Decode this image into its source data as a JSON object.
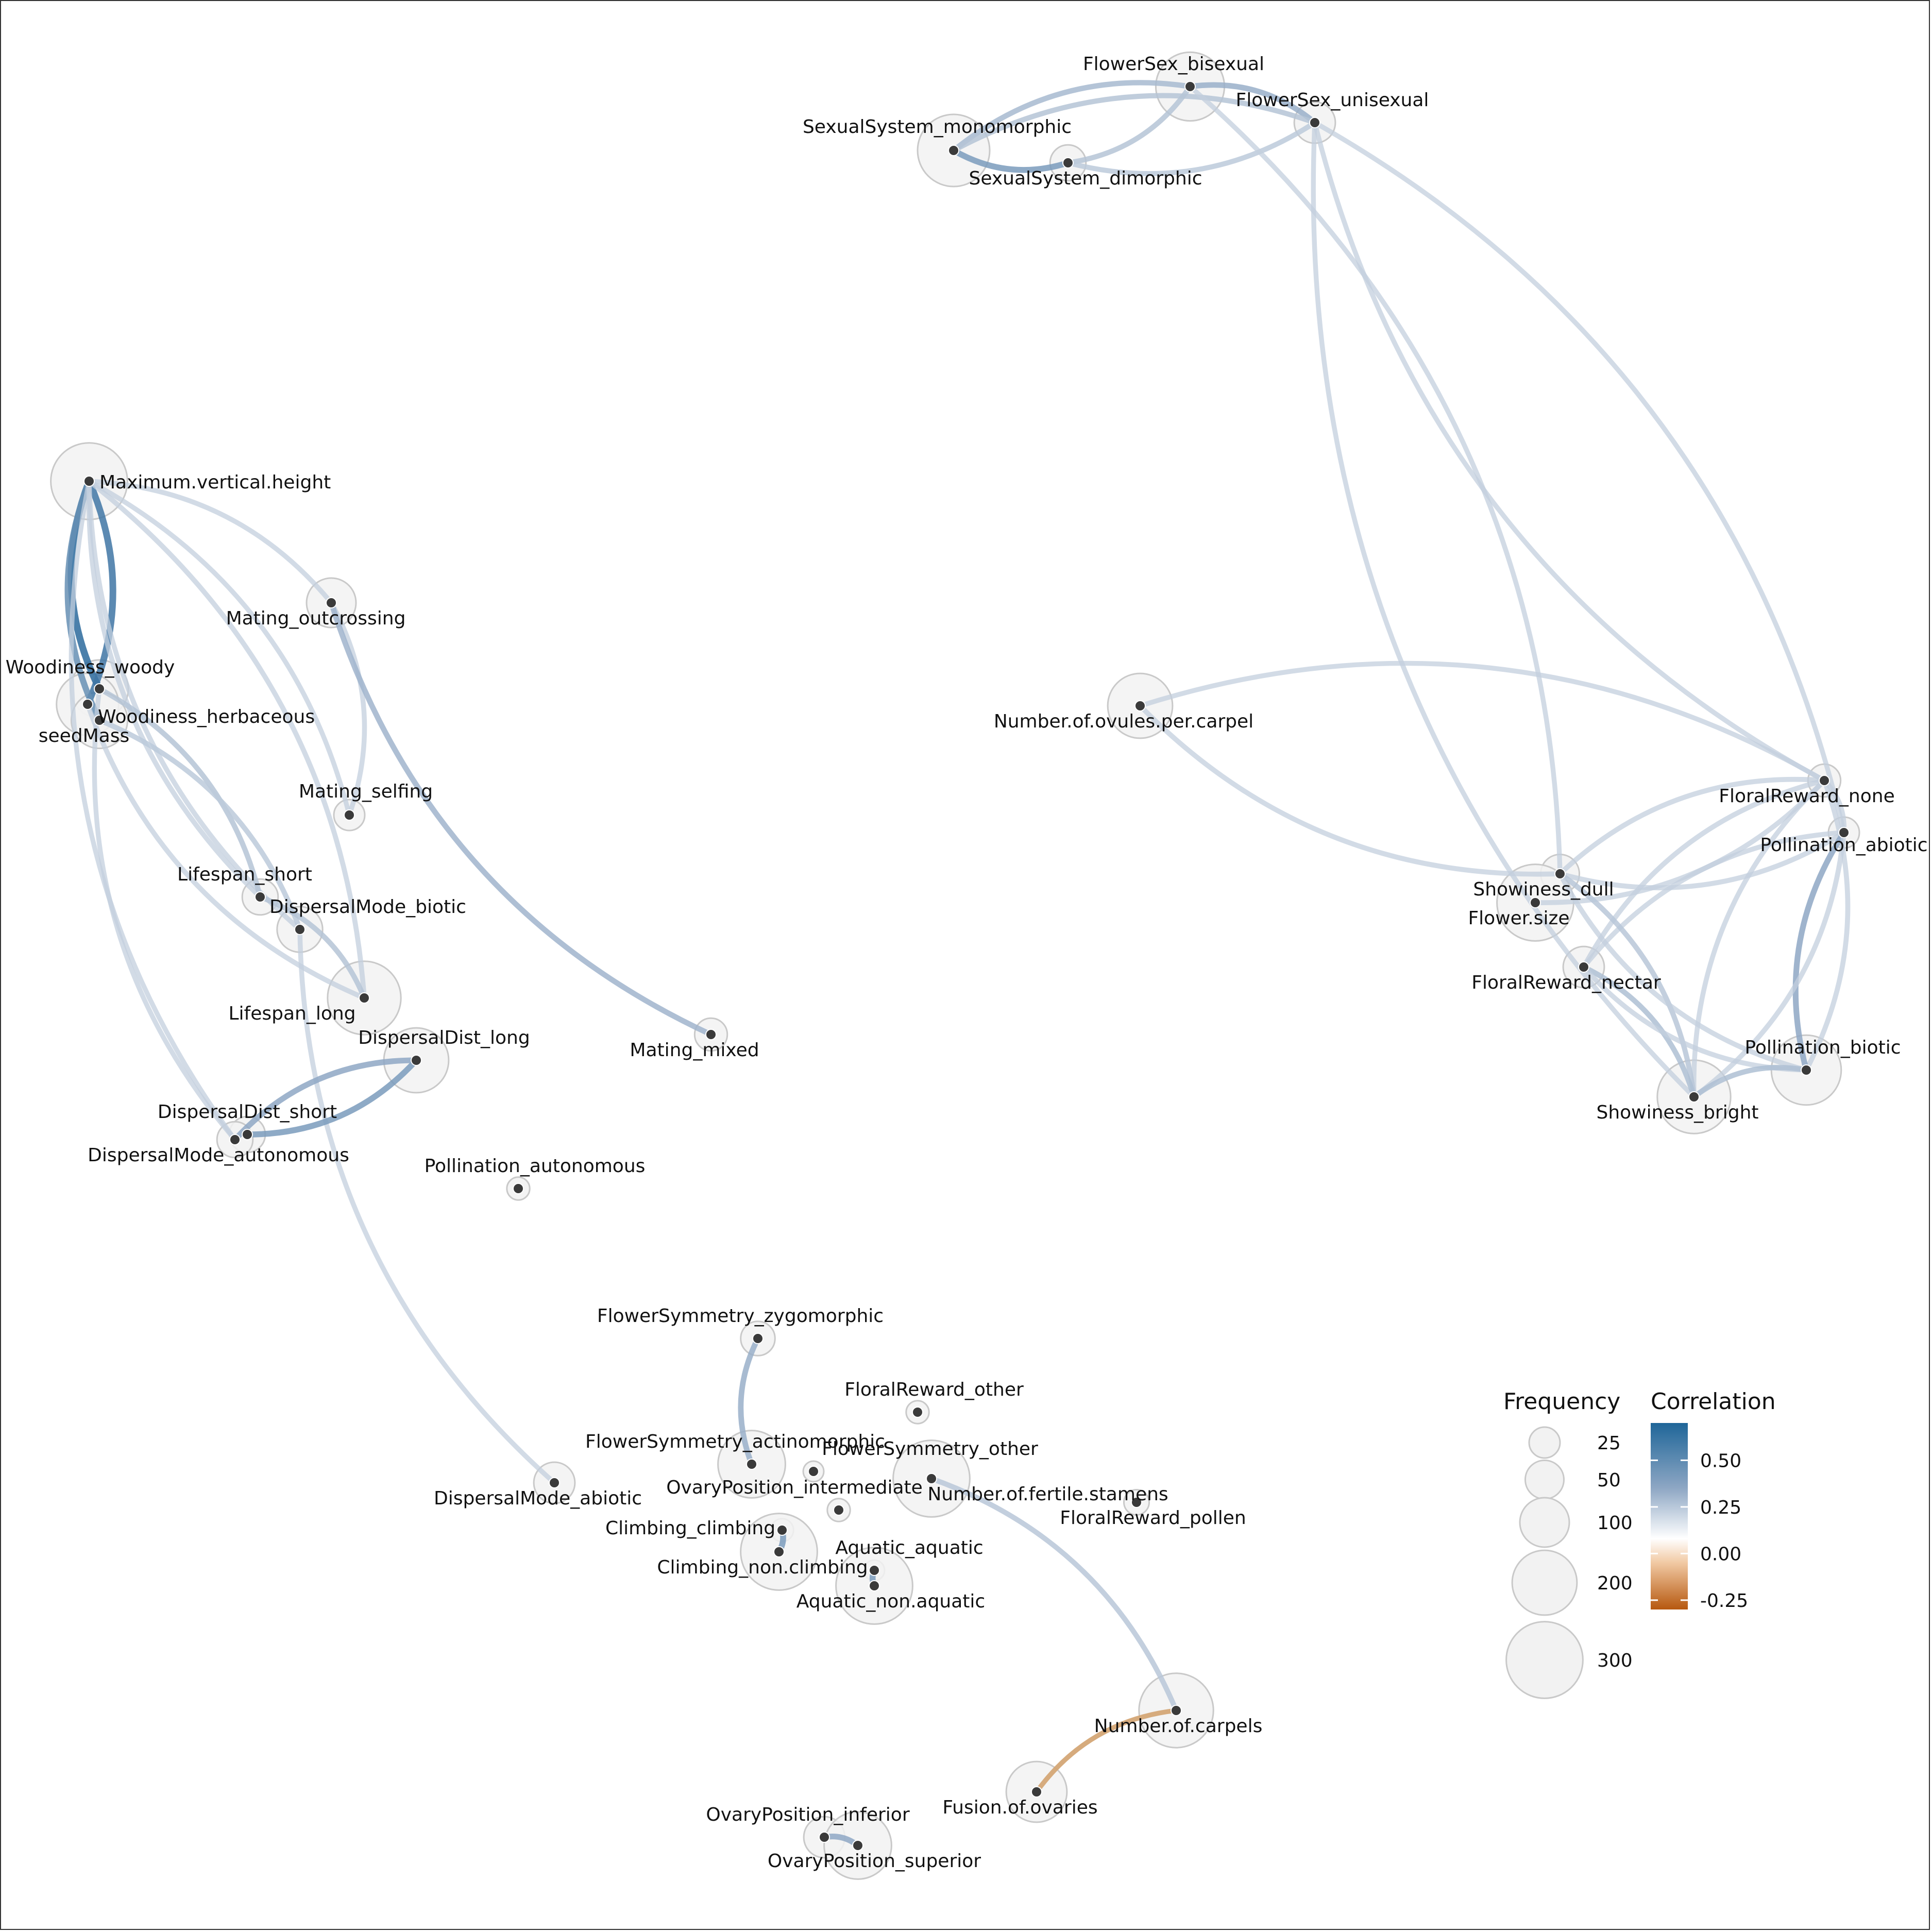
{
  "colors": {
    "edge_weak": "#c3cfdd",
    "edge_mid": "#8ea7c4",
    "edge_strong": "#2b6a9c",
    "edge_negative": "#d4a676",
    "node_dot": "#3a3a3a",
    "bubble_fill": "#f2f2f2",
    "bubble_stroke": "#c9c9c9",
    "label": "#111111",
    "gradient": [
      "#1f6699",
      "#8ea7c4",
      "#ffffff",
      "#f1c9a3",
      "#b6580f"
    ]
  },
  "nodes": [
    {
      "id": "Maximum.vertical.height",
      "freq": 300
    },
    {
      "id": "Mating_outcrossing",
      "freq": 100
    },
    {
      "id": "Woodiness_woody",
      "freq": 150
    },
    {
      "id": "Woodiness_herbaceous",
      "freq": 180
    },
    {
      "id": "seedMass",
      "freq": 140
    },
    {
      "id": "Mating_selfing",
      "freq": 25
    },
    {
      "id": "Lifespan_short",
      "freq": 40
    },
    {
      "id": "DispersalMode_biotic",
      "freq": 80
    },
    {
      "id": "Lifespan_long",
      "freq": 270
    },
    {
      "id": "DispersalDist_long",
      "freq": 200
    },
    {
      "id": "Mating_mixed",
      "freq": 30
    },
    {
      "id": "DispersalDist_short",
      "freq": 40
    },
    {
      "id": "DispersalMode_autonomous",
      "freq": 40
    },
    {
      "id": "Pollination_autonomous",
      "freq": 8
    },
    {
      "id": "FlowerSex_bisexual",
      "freq": 230
    },
    {
      "id": "FlowerSex_unisexual",
      "freq": 60
    },
    {
      "id": "SexualSystem_monomorphic",
      "freq": 260
    },
    {
      "id": "SexualSystem_dimorphic",
      "freq": 40
    },
    {
      "id": "Number.of.ovules.per.carpel",
      "freq": 200
    },
    {
      "id": "FloralReward_none",
      "freq": 30
    },
    {
      "id": "Pollination_abiotic",
      "freq": 25
    },
    {
      "id": "Showiness_dull",
      "freq": 50
    },
    {
      "id": "Flower.size",
      "freq": 300
    },
    {
      "id": "FloralReward_nectar",
      "freq": 60
    },
    {
      "id": "Pollination_biotic",
      "freq": 240
    },
    {
      "id": "Showiness_bright",
      "freq": 270
    },
    {
      "id": "FlowerSymmetry_zygomorphic",
      "freq": 35
    },
    {
      "id": "FloralReward_other",
      "freq": 8
    },
    {
      "id": "FlowerSymmetry_actinomorphic",
      "freq": 220
    },
    {
      "id": "FlowerSymmetry_other",
      "freq": 5
    },
    {
      "id": "Number.of.fertile.stamens",
      "freq": 300
    },
    {
      "id": "OvaryPosition_intermediate",
      "freq": 8
    },
    {
      "id": "FloralReward_pollen",
      "freq": 12
    },
    {
      "id": "DispersalMode_abiotic",
      "freq": 60
    },
    {
      "id": "Climbing_climbing",
      "freq": 8
    },
    {
      "id": "Climbing_non.climbing",
      "freq": 300
    },
    {
      "id": "Aquatic_aquatic",
      "freq": 5
    },
    {
      "id": "Aquatic_non.aquatic",
      "freq": 300
    },
    {
      "id": "Number.of.carpels",
      "freq": 280
    },
    {
      "id": "Fusion.of.ovaries",
      "freq": 170
    },
    {
      "id": "OvaryPosition_inferior",
      "freq": 60
    },
    {
      "id": "OvaryPosition_superior",
      "freq": 220
    }
  ],
  "edges": [
    {
      "source": "Maximum.vertical.height",
      "target": "Woodiness_woody",
      "corr": 0.7
    },
    {
      "source": "Maximum.vertical.height",
      "target": "Woodiness_herbaceous",
      "corr": 0.65
    },
    {
      "source": "Maximum.vertical.height",
      "target": "seedMass",
      "corr": 0.55
    },
    {
      "source": "Maximum.vertical.height",
      "target": "Mating_outcrossing",
      "corr": 0.28
    },
    {
      "source": "Maximum.vertical.height",
      "target": "Lifespan_short",
      "corr": 0.3
    },
    {
      "source": "Maximum.vertical.height",
      "target": "Lifespan_long",
      "corr": 0.3
    },
    {
      "source": "Maximum.vertical.height",
      "target": "DispersalMode_biotic",
      "corr": 0.28
    },
    {
      "source": "Maximum.vertical.height",
      "target": "Mating_selfing",
      "corr": 0.26
    },
    {
      "source": "Maximum.vertical.height",
      "target": "DispersalMode_autonomous",
      "corr": 0.26
    },
    {
      "source": "Woodiness_woody",
      "target": "Lifespan_short",
      "corr": 0.34
    },
    {
      "source": "Woodiness_herbaceous",
      "target": "Lifespan_long",
      "corr": 0.3
    },
    {
      "source": "seedMass",
      "target": "DispersalMode_biotic",
      "corr": 0.32
    },
    {
      "source": "Woodiness_woody",
      "target": "DispersalMode_autonomous",
      "corr": 0.26
    },
    {
      "source": "Mating_outcrossing",
      "target": "Mating_selfing",
      "corr": 0.28
    },
    {
      "source": "Mating_outcrossing",
      "target": "Mating_mixed",
      "corr": 0.4
    },
    {
      "source": "Lifespan_short",
      "target": "Lifespan_long",
      "corr": 0.34
    },
    {
      "source": "DispersalMode_biotic",
      "target": "DispersalMode_abiotic",
      "corr": 0.28
    },
    {
      "source": "DispersalDist_long",
      "target": "DispersalDist_short",
      "corr": 0.5
    },
    {
      "source": "DispersalDist_long",
      "target": "DispersalMode_autonomous",
      "corr": 0.45
    },
    {
      "source": "FlowerSex_bisexual",
      "target": "FlowerSex_unisexual",
      "corr": 0.42
    },
    {
      "source": "FlowerSex_bisexual",
      "target": "SexualSystem_monomorphic",
      "corr": 0.38
    },
    {
      "source": "FlowerSex_bisexual",
      "target": "SexualSystem_dimorphic",
      "corr": 0.34
    },
    {
      "source": "FlowerSex_unisexual",
      "target": "SexualSystem_monomorphic",
      "corr": 0.34
    },
    {
      "source": "FlowerSex_unisexual",
      "target": "SexualSystem_dimorphic",
      "corr": 0.32
    },
    {
      "source": "SexualSystem_monomorphic",
      "target": "SexualSystem_dimorphic",
      "corr": 0.5
    },
    {
      "source": "FlowerSex_bisexual",
      "target": "Showiness_dull",
      "corr": 0.27
    },
    {
      "source": "FlowerSex_unisexual",
      "target": "FloralReward_none",
      "corr": 0.27
    },
    {
      "source": "FlowerSex_unisexual",
      "target": "Pollination_abiotic",
      "corr": 0.27
    },
    {
      "source": "FlowerSex_unisexual",
      "target": "Showiness_bright",
      "corr": 0.27
    },
    {
      "source": "Number.of.ovules.per.carpel",
      "target": "FloralReward_none",
      "corr": 0.27
    },
    {
      "source": "Number.of.ovules.per.carpel",
      "target": "Showiness_dull",
      "corr": 0.3
    },
    {
      "source": "FloralReward_none",
      "target": "Pollination_abiotic",
      "corr": 0.3
    },
    {
      "source": "FloralReward_none",
      "target": "Showiness_dull",
      "corr": 0.3
    },
    {
      "source": "FloralReward_none",
      "target": "Flower.size",
      "corr": 0.3
    },
    {
      "source": "FloralReward_none",
      "target": "FloralReward_nectar",
      "corr": 0.3
    },
    {
      "source": "FloralReward_none",
      "target": "Pollination_biotic",
      "corr": 0.3
    },
    {
      "source": "FloralReward_none",
      "target": "Showiness_bright",
      "corr": 0.28
    },
    {
      "source": "Pollination_abiotic",
      "target": "Showiness_dull",
      "corr": 0.3
    },
    {
      "source": "Pollination_abiotic",
      "target": "Pollination_biotic",
      "corr": 0.45
    },
    {
      "source": "Pollination_abiotic",
      "target": "Showiness_bright",
      "corr": 0.3
    },
    {
      "source": "Pollination_abiotic",
      "target": "FloralReward_nectar",
      "corr": 0.28
    },
    {
      "source": "Showiness_dull",
      "target": "Showiness_bright",
      "corr": 0.33
    },
    {
      "source": "Showiness_dull",
      "target": "Pollination_biotic",
      "corr": 0.3
    },
    {
      "source": "FloralReward_nectar",
      "target": "Showiness_bright",
      "corr": 0.36
    },
    {
      "source": "FloralReward_nectar",
      "target": "Pollination_biotic",
      "corr": 0.28
    },
    {
      "source": "Showiness_bright",
      "target": "Pollination_biotic",
      "corr": 0.36
    },
    {
      "source": "FlowerSymmetry_zygomorphic",
      "target": "FlowerSymmetry_actinomorphic",
      "corr": 0.42
    },
    {
      "source": "Climbing_climbing",
      "target": "Climbing_non.climbing",
      "corr": 0.5
    },
    {
      "source": "Aquatic_aquatic",
      "target": "Aquatic_non.aquatic",
      "corr": 0.5
    },
    {
      "source": "Number.of.fertile.stamens",
      "target": "Number.of.carpels",
      "corr": 0.33
    },
    {
      "source": "Number.of.carpels",
      "target": "Fusion.of.ovaries",
      "corr": -0.25
    },
    {
      "source": "OvaryPosition_inferior",
      "target": "OvaryPosition_superior",
      "corr": 0.45
    }
  ],
  "legend": {
    "frequency": {
      "title": "Frequency",
      "breaks": [
        "25",
        "50",
        "100",
        "200",
        "300"
      ],
      "values": [
        25,
        50,
        100,
        200,
        300
      ]
    },
    "correlation": {
      "title": "Correlation",
      "breaks": [
        "0.50",
        "0.25",
        "0.00",
        "-0.25"
      ],
      "values": [
        0.5,
        0.25,
        0.0,
        -0.25
      ],
      "range": [
        -0.3,
        0.7
      ]
    }
  }
}
